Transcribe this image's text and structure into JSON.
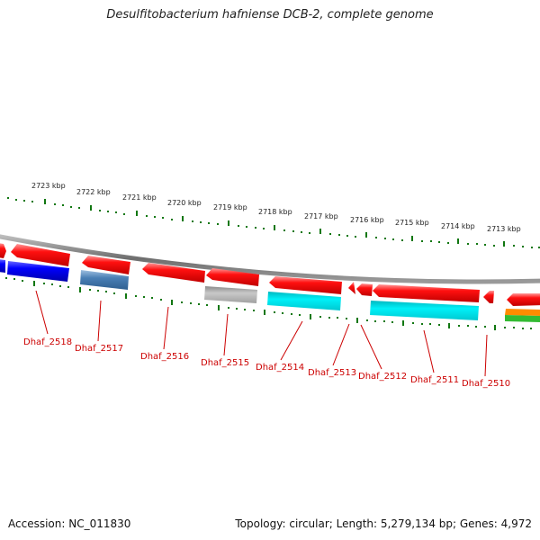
{
  "title": "Desulfitobacterium hafniense DCB-2, complete genome",
  "footer": {
    "accession": "Accession: NC_011830",
    "summary": "Topology: circular; Length: 5,279,134 bp; Genes: 4,972"
  },
  "colors": {
    "red": "#ee0000",
    "blue": "#0000ee",
    "steelblue": "#4a7fb5",
    "gray": "#aaaaaa",
    "cyan": "#00e5ee",
    "orange": "#ff8c00",
    "green": "#33bb33",
    "ticks": "#117711",
    "backbone": "#7a7a7a",
    "label": "#cc0000"
  },
  "scale": {
    "labels": [
      "2723 kbp",
      "2722 kbp",
      "2721 kbp",
      "2720 kbp",
      "2719 kbp",
      "2718 kbp",
      "2717 kbp",
      "2716 kbp",
      "2715 kbp",
      "2714 kbp",
      "2713 kbp"
    ]
  },
  "genes": [
    {
      "label": "Dhaf_2518",
      "strand": "reverse",
      "protein_color": "blue"
    },
    {
      "label": "Dhaf_2517",
      "strand": "reverse",
      "protein_color": "steelblue"
    },
    {
      "label": "Dhaf_2516",
      "strand": "reverse",
      "protein_color": "none"
    },
    {
      "label": "Dhaf_2515",
      "strand": "reverse",
      "protein_color": "gray"
    },
    {
      "label": "Dhaf_2514",
      "strand": "reverse",
      "protein_color": "cyan"
    },
    {
      "label": "Dhaf_2513",
      "strand": "reverse",
      "protein_color": "none"
    },
    {
      "label": "Dhaf_2512",
      "strand": "reverse",
      "protein_color": "none"
    },
    {
      "label": "Dhaf_2511",
      "strand": "reverse",
      "protein_color": "cyan"
    },
    {
      "label": "Dhaf_2510",
      "strand": "reverse",
      "protein_color": "none"
    }
  ]
}
